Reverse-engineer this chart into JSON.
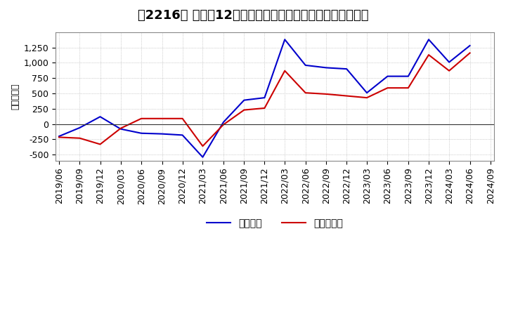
{
  "title": "［2216］ 利益の12か月移動合計の対前年同期増減額の推移",
  "ylabel": "（百万円）",
  "dates": [
    "2019/06",
    "2019/09",
    "2019/12",
    "2020/03",
    "2020/06",
    "2020/09",
    "2020/12",
    "2021/03",
    "2021/06",
    "2021/09",
    "2021/12",
    "2022/03",
    "2022/06",
    "2022/09",
    "2022/12",
    "2023/03",
    "2023/06",
    "2023/09",
    "2023/12",
    "2024/03",
    "2024/06",
    "2024/09"
  ],
  "keijo_rieki": [
    -200,
    -60,
    120,
    -80,
    -150,
    -160,
    -180,
    -540,
    30,
    390,
    430,
    1380,
    960,
    920,
    900,
    510,
    780,
    780,
    1380,
    1010,
    1280,
    null
  ],
  "touki_jun_rieki": [
    -215,
    -230,
    -330,
    -70,
    90,
    90,
    90,
    -360,
    -10,
    230,
    260,
    870,
    510,
    490,
    460,
    430,
    590,
    590,
    1130,
    870,
    1160,
    null
  ],
  "keijo_color": "#0000cc",
  "touki_color": "#cc0000",
  "ylim": [
    -600,
    1500
  ],
  "yticks": [
    -500,
    -250,
    0,
    250,
    500,
    750,
    1000,
    1250
  ],
  "bg_color": "#ffffff",
  "plot_bg_color": "#ffffff",
  "grid_color": "#aaaaaa",
  "legend_keijo": "経常利益",
  "legend_touki": "当期純利益",
  "title_fontsize": 13,
  "axis_fontsize": 9
}
